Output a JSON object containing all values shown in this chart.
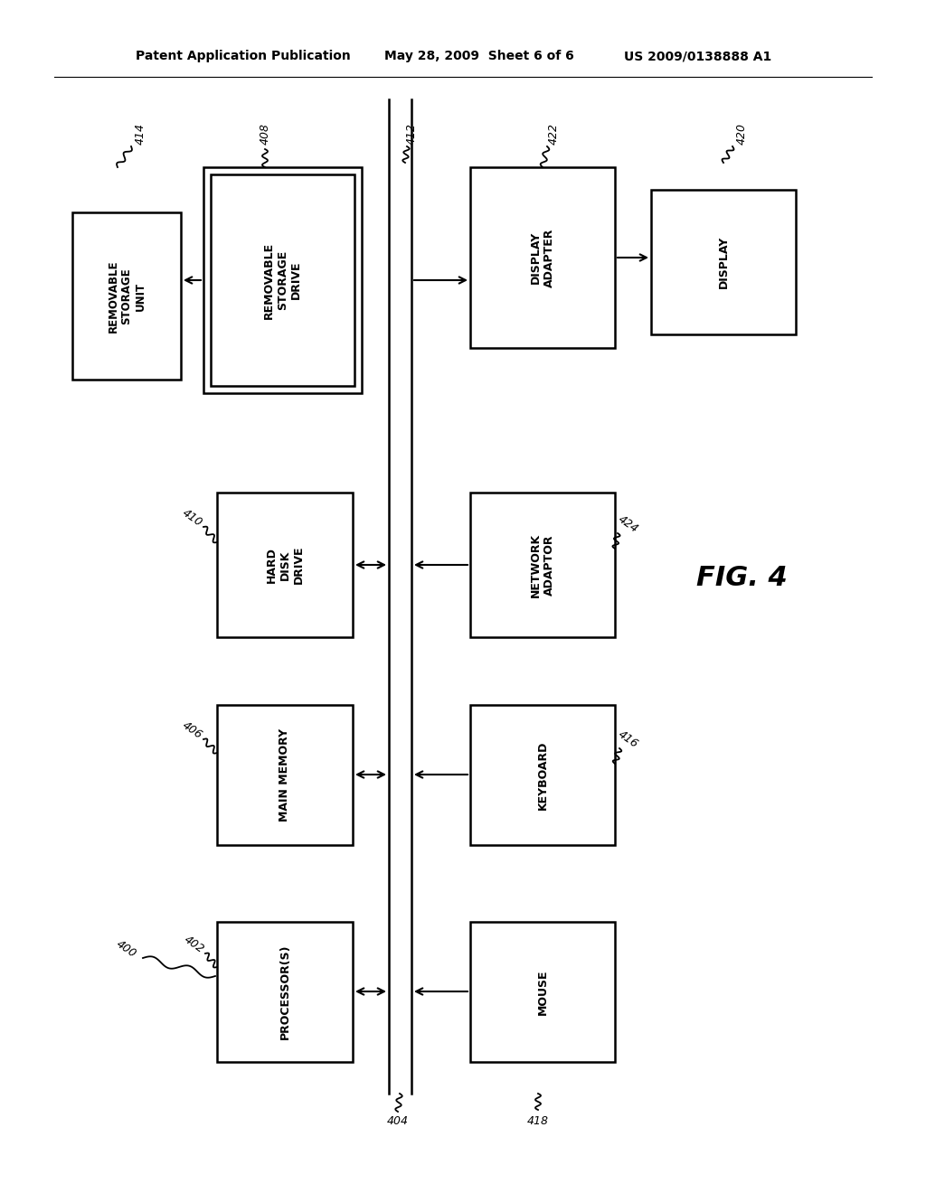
{
  "bg_color": "#ffffff",
  "header_line1": "Patent Application Publication",
  "header_line2": "May 28, 2009  Sheet 6 of 6",
  "header_line3": "US 2009/0138888 A1",
  "fig_label": "FIG. 4",
  "font_color": "#000000"
}
